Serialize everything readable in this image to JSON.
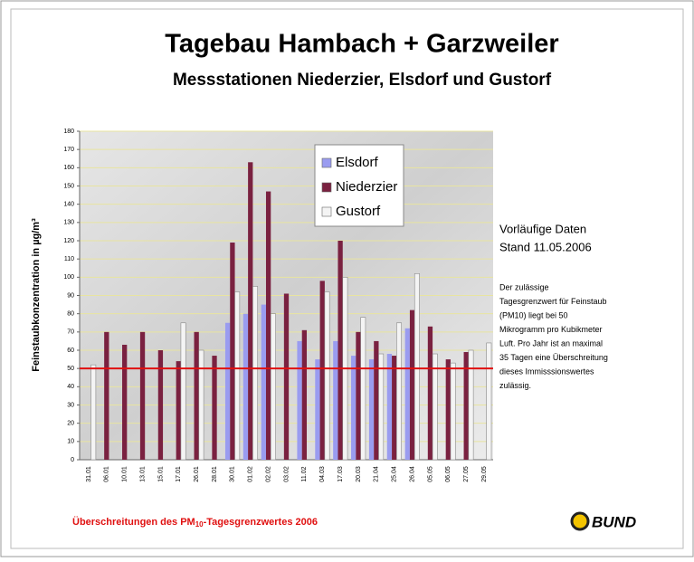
{
  "chart_data": {
    "type": "bar",
    "title": "Tagebau Hambach + Garzweiler",
    "subtitle": "Messstationen Niederzier, Elsdorf und Gustorf",
    "y_label": "Feinstaubkonzentration in µg/m³",
    "categories": [
      "31.01",
      "06.01",
      "10.01",
      "13.01",
      "15.01",
      "17.01",
      "26.01",
      "28.01",
      "30.01",
      "01.02",
      "02.02",
      "03.02",
      "11.02",
      "04.03",
      "17.03",
      "20.03",
      "21.04",
      "25.04",
      "26.04",
      "05.05",
      "06.05",
      "27.05",
      "29.05"
    ],
    "series": [
      {
        "name": "Elsdorf",
        "color": "#9a9cf0",
        "values": [
          null,
          null,
          null,
          null,
          null,
          null,
          null,
          null,
          75,
          80,
          85,
          null,
          65,
          55,
          65,
          57,
          55,
          58,
          72,
          null,
          null,
          null,
          null
        ]
      },
      {
        "name": "Niederzier",
        "color": "#7a2140",
        "values": [
          null,
          70,
          63,
          70,
          60,
          54,
          70,
          57,
          119,
          163,
          147,
          91,
          71,
          98,
          120,
          70,
          65,
          57,
          82,
          73,
          55,
          59,
          null
        ]
      },
      {
        "name": "Gustorf",
        "color": "#f4f4f4",
        "values": [
          52,
          null,
          null,
          null,
          null,
          75,
          60,
          null,
          92,
          95,
          80,
          null,
          null,
          92,
          100,
          78,
          58,
          75,
          102,
          58,
          53,
          60,
          64
        ]
      }
    ],
    "ylim": [
      0,
      180
    ],
    "yticks": [
      0,
      10,
      20,
      30,
      40,
      50,
      60,
      70,
      80,
      90,
      100,
      110,
      120,
      130,
      140,
      150,
      160,
      170,
      180
    ],
    "grid": true,
    "threshold": 50,
    "threshold_color": "#e01010",
    "notes": {
      "heading": [
        "Vorläufige Daten",
        "Stand 11.05.2006"
      ],
      "text": [
        "Der zulässige",
        "Tagesgrenzwert für Feinstaub",
        "(PM10) liegt bei 50",
        "Mikrogramm pro Kubikmeter",
        "Luft. Pro Jahr ist an maximal",
        "35 Tagen eine Überschreitung",
        "dieses Immisssionswertes",
        "zulässig."
      ]
    },
    "footer": {
      "prefix": "Überschreitungen des PM",
      "sub": "10",
      "suffix": "-Tagesgrenzwertes 2006"
    },
    "logo": "BUND"
  }
}
